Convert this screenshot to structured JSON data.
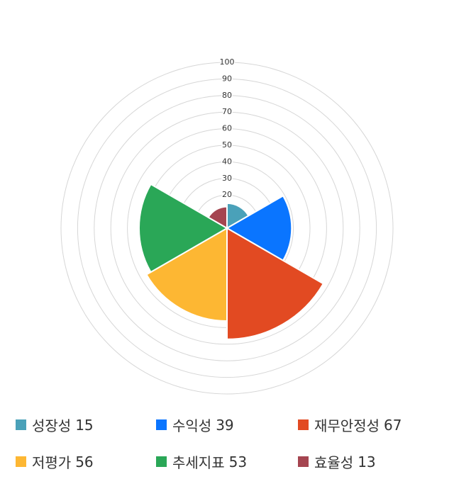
{
  "chart_data": {
    "type": "polarArea",
    "categories": [
      "성장성",
      "수익성",
      "재무안정성",
      "저평가",
      "추세지표",
      "효율성"
    ],
    "values": [
      15,
      39,
      67,
      56,
      53,
      13
    ],
    "colors": [
      "#4aa1b9",
      "#0a75ff",
      "#e24a22",
      "#fdb733",
      "#2aa757",
      "#a54550"
    ],
    "rlim": [
      0,
      100
    ],
    "rticks": [
      20,
      30,
      40,
      50,
      60,
      70,
      80,
      90,
      100
    ],
    "grid": true
  }
}
